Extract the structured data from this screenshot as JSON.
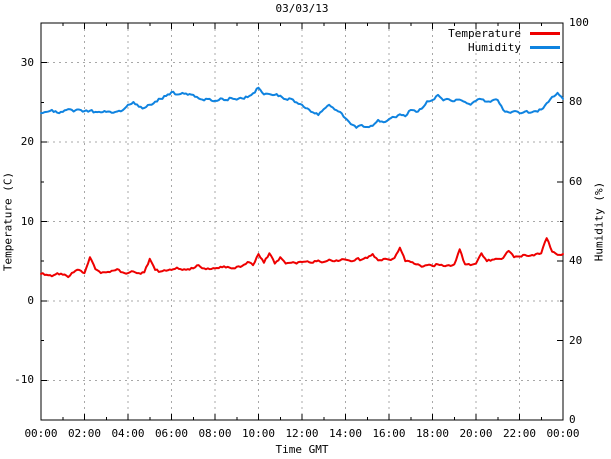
{
  "title": "03/03/13",
  "legend": {
    "items": [
      {
        "label": "Temperature",
        "color": "#ee0000"
      },
      {
        "label": "Humidity",
        "color": "#0f83e0"
      }
    ]
  },
  "colors": {
    "grid": "#a8a8a8",
    "border": "#000000",
    "temperature": "#ee0000",
    "humidity": "#0f83e0"
  },
  "chart_data": {
    "type": "line",
    "title": "03/03/13",
    "xlabel": "Time GMT",
    "x_tick_labels": [
      "00:00",
      "02:00",
      "04:00",
      "06:00",
      "08:00",
      "10:00",
      "12:00",
      "14:00",
      "16:00",
      "18:00",
      "20:00",
      "22:00",
      "00:00"
    ],
    "x_major_hours": [
      0,
      2,
      4,
      6,
      8,
      10,
      12,
      14,
      16,
      18,
      20,
      22,
      24
    ],
    "x_minor_hours": [
      1,
      3,
      5,
      7,
      9,
      11,
      13,
      15,
      17,
      19,
      21,
      23
    ],
    "x_range_hours": [
      0,
      24
    ],
    "grid": "dashed, at x majors and left-axis majors",
    "legend_position": "top-right inside, no box",
    "sample_interval_hours": 0.25,
    "left_axis": {
      "label": "Temperature (C)",
      "range": [
        -15,
        35
      ],
      "major_ticks": [
        30,
        20,
        10,
        0,
        -10
      ],
      "minor_ticks": [
        25,
        15,
        5,
        -5
      ]
    },
    "right_axis": {
      "label": "Humidity (%)",
      "range": [
        0,
        100
      ],
      "major_ticks": [
        100,
        80,
        60,
        40,
        20,
        0
      ],
      "minor_ticks": [
        90,
        70,
        50,
        30,
        10
      ]
    },
    "noise_amplitude": {
      "temperature": 0.13,
      "humidity": 0.28
    },
    "series": [
      {
        "name": "Temperature",
        "axis": "left",
        "color": "#ee0000",
        "values": [
          3.4,
          3.3,
          3.1,
          3.5,
          3.3,
          3.0,
          3.6,
          3.9,
          3.5,
          5.5,
          4.0,
          3.5,
          3.6,
          3.8,
          4.0,
          3.6,
          3.5,
          3.7,
          3.5,
          3.6,
          5.3,
          3.9,
          3.7,
          3.8,
          3.9,
          4.2,
          3.9,
          4.0,
          4.1,
          4.5,
          4.1,
          4.0,
          4.1,
          4.3,
          4.2,
          4.1,
          4.3,
          4.4,
          4.9,
          4.5,
          5.9,
          4.8,
          6.0,
          4.7,
          5.5,
          4.7,
          4.8,
          4.7,
          4.9,
          5.0,
          4.8,
          5.1,
          4.9,
          5.2,
          5.0,
          5.1,
          5.2,
          5.0,
          5.3,
          5.2,
          5.4,
          5.9,
          5.1,
          5.3,
          5.2,
          5.4,
          6.7,
          5.0,
          4.9,
          4.6,
          4.3,
          4.5,
          4.4,
          4.6,
          4.4,
          4.5,
          4.6,
          6.5,
          4.6,
          4.5,
          4.7,
          6.0,
          5.0,
          5.2,
          5.3,
          5.4,
          6.3,
          5.5,
          5.6,
          5.8,
          5.7,
          5.9,
          6.0,
          7.9,
          6.2,
          5.8,
          5.9
        ]
      },
      {
        "name": "Humidity",
        "axis": "right",
        "color": "#0f83e0",
        "values": [
          77.3,
          77.6,
          78.1,
          77.4,
          77.6,
          78.3,
          77.7,
          78.2,
          77.8,
          77.9,
          77.6,
          77.5,
          77.6,
          77.4,
          77.7,
          78.0,
          79.4,
          80.1,
          78.9,
          78.6,
          79.4,
          80.2,
          80.9,
          81.6,
          82.6,
          82.0,
          82.4,
          81.9,
          81.9,
          81.0,
          80.5,
          80.9,
          80.4,
          81.0,
          80.6,
          81.1,
          80.7,
          81.0,
          81.3,
          82.3,
          83.7,
          82.0,
          82.1,
          81.9,
          81.7,
          80.8,
          80.9,
          80.0,
          79.4,
          78.5,
          77.5,
          76.8,
          78.3,
          79.4,
          78.2,
          77.6,
          76.0,
          74.5,
          73.6,
          74.3,
          73.8,
          74.1,
          75.6,
          75.0,
          75.8,
          76.3,
          77.0,
          76.5,
          78.1,
          77.6,
          78.4,
          80.3,
          80.6,
          81.9,
          80.5,
          80.8,
          80.3,
          80.7,
          80.1,
          79.4,
          80.4,
          80.8,
          80.2,
          80.5,
          80.6,
          78.1,
          77.5,
          77.8,
          77.3,
          77.7,
          77.4,
          77.8,
          78.2,
          79.8,
          81.4,
          82.4,
          80.9
        ]
      }
    ]
  }
}
